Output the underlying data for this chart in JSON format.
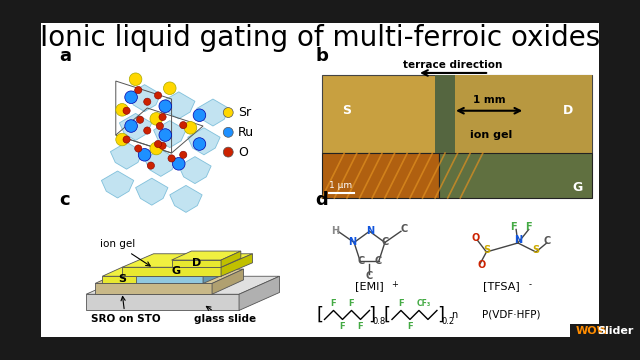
{
  "title": "Ionic liquid gating of multi-ferroic oxides",
  "title_fontsize": 20,
  "title_color": "#000000",
  "background_color": "#1a1a1a",
  "panel_bg": "#ffffff",
  "legend_items": [
    {
      "label": "Sr",
      "color": "#FFD700"
    },
    {
      "label": "Ru",
      "color": "#1E90FF"
    },
    {
      "label": "O",
      "color": "#CC2200"
    }
  ],
  "panel_b_text_top": "terrace direction",
  "panel_b_scale1": "1 mm",
  "panel_b_scale2": "1 μm",
  "panel_b_ion_gel": "ion gel",
  "panel_c_ion_gel": "ion gel",
  "panel_c_bottom1": "SRO on STO",
  "panel_c_bottom2": "glass slide",
  "panel_d_emi": "[EMI]",
  "panel_d_emi_charge": "+",
  "panel_d_tfsa": "[TFSA]",
  "panel_d_tfsa_charge": "-",
  "panel_d_polymer": "P(VDF·HFP)",
  "wowslider_wow": "WOW",
  "wowslider_slider": "Slider",
  "wowslider_color_wow": "#FF8C00",
  "wowslider_color_slider": "#ffffff",
  "photo_top_color": "#C8A040",
  "photo_top_right_color": "#8B9B50",
  "photo_bottom_left_color": "#C87820",
  "photo_bottom_right_color": "#6B7B30",
  "ion_gel_yellow": "#E8E830",
  "sro_blue": "#90C8E0",
  "glass_tan": "#C8B888",
  "glass_slide_light": "#D8D8D8",
  "base_gray": "#C0C0C0"
}
